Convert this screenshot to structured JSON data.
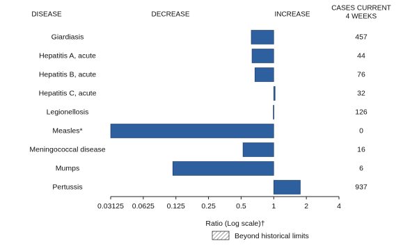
{
  "chart_data": {
    "type": "bar",
    "orientation": "horizontal",
    "disease_header": "DISEASE",
    "decrease_label": "DECREASE",
    "increase_label": "INCREASE",
    "cases_header": [
      "CASES CURRENT",
      "4 WEEKS"
    ],
    "xlabel": "Ratio (Log scale)†",
    "legend_label": "Beyond historical limits",
    "categories": [
      "Giardiasis",
      "Hepatitis A, acute",
      "Hepatitis B, acute",
      "Hepatitis C, acute",
      "Legionellosis",
      "Measles*",
      "Meningococcal disease",
      "Mumps",
      "Pertussis"
    ],
    "values": [
      0.62,
      0.63,
      0.67,
      1.03,
      0.99,
      0.03125,
      0.52,
      0.117,
      1.76
    ],
    "cases": [
      457,
      44,
      76,
      32,
      126,
      0,
      16,
      6,
      937
    ],
    "color": "#2e5f9e",
    "xscale": "log",
    "xlim": [
      0.03125,
      4
    ],
    "xticks": [
      0.03125,
      0.0625,
      0.125,
      0.25,
      0.5,
      1,
      2,
      4
    ]
  }
}
